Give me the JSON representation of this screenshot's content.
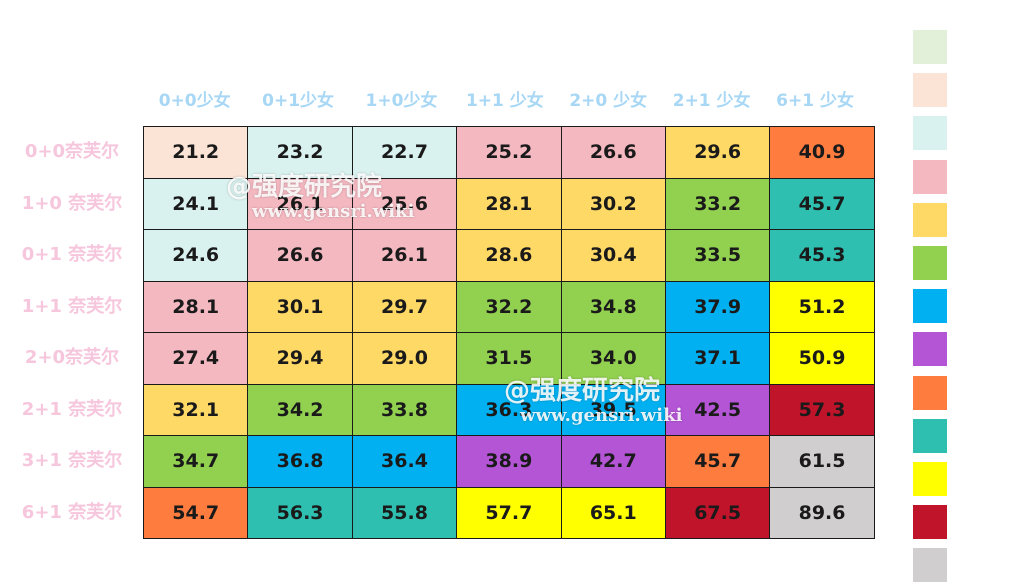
{
  "chart_data": {
    "type": "heatmap",
    "title": "",
    "xlabel": "",
    "ylabel": "",
    "columns": [
      "0+0少女",
      "0+1少女",
      "1+0少女",
      "1+1 少女",
      "2+0 少女",
      "2+1 少女",
      "6+1 少女"
    ],
    "rows": [
      "0+0奈芙尔",
      "1+0 奈芙尔",
      "0+1 奈芙尔",
      "1+1  奈芙尔",
      "2+0奈芙尔",
      "2+1 奈芙尔",
      "3+1 奈芙尔",
      "6+1 奈芙尔"
    ],
    "values": [
      [
        "21.2",
        "23.2",
        "22.7",
        "25.2",
        "26.6",
        "29.6",
        "40.9"
      ],
      [
        "24.1",
        "26.1",
        "25.6",
        "28.1",
        "30.2",
        "33.2",
        "45.7"
      ],
      [
        "24.6",
        "26.6",
        "26.1",
        "28.6",
        "30.4",
        "33.5",
        "45.3"
      ],
      [
        "28.1",
        "30.1",
        "29.7",
        "32.2",
        "34.8",
        "37.9",
        "51.2"
      ],
      [
        "27.4",
        "29.4",
        "29.0",
        "31.5",
        "34.0",
        "37.1",
        "50.9"
      ],
      [
        "32.1",
        "34.2",
        "33.8",
        "36.3",
        "39.5",
        "42.5",
        "57.3"
      ],
      [
        "34.7",
        "36.8",
        "36.4",
        "38.9",
        "42.7",
        "45.7",
        "61.5"
      ],
      [
        "54.7",
        "56.3",
        "55.8",
        "57.7",
        "65.1",
        "67.5",
        "89.6"
      ]
    ],
    "color_index": [
      [
        1,
        2,
        2,
        3,
        3,
        4,
        8
      ],
      [
        2,
        3,
        3,
        4,
        4,
        5,
        9
      ],
      [
        2,
        3,
        3,
        4,
        4,
        5,
        9
      ],
      [
        3,
        4,
        4,
        5,
        5,
        6,
        10
      ],
      [
        3,
        4,
        4,
        5,
        5,
        6,
        10
      ],
      [
        4,
        5,
        5,
        6,
        6,
        7,
        11
      ],
      [
        5,
        6,
        6,
        7,
        7,
        8,
        12
      ],
      [
        8,
        9,
        9,
        10,
        10,
        11,
        12
      ]
    ],
    "legend_colors": [
      "#e2efd9",
      "#fbe4d5",
      "#d9f2f0",
      "#f4b8c1",
      "#ffd966",
      "#92d050",
      "#00b0f0",
      "#b455d6",
      "#ff7c3f",
      "#2ebfb0",
      "#ffff00",
      "#c0142a",
      "#d0cece"
    ],
    "cell_colors": {
      "1": "#fbe4d5",
      "2": "#d9f2f0",
      "3": "#f4b8c1",
      "4": "#ffd966",
      "5": "#92d050",
      "6": "#00b0f0",
      "7": "#b455d6",
      "8": "#ff7c3f",
      "9": "#2ebfb0",
      "10": "#ffff00",
      "11": "#c0142a",
      "12": "#d0cece"
    }
  },
  "watermarks": [
    {
      "handle": "@强度研究院",
      "url": "www.gensri.wiki"
    },
    {
      "handle": "@强度研究院",
      "url": "www.gensri.wiki"
    }
  ]
}
